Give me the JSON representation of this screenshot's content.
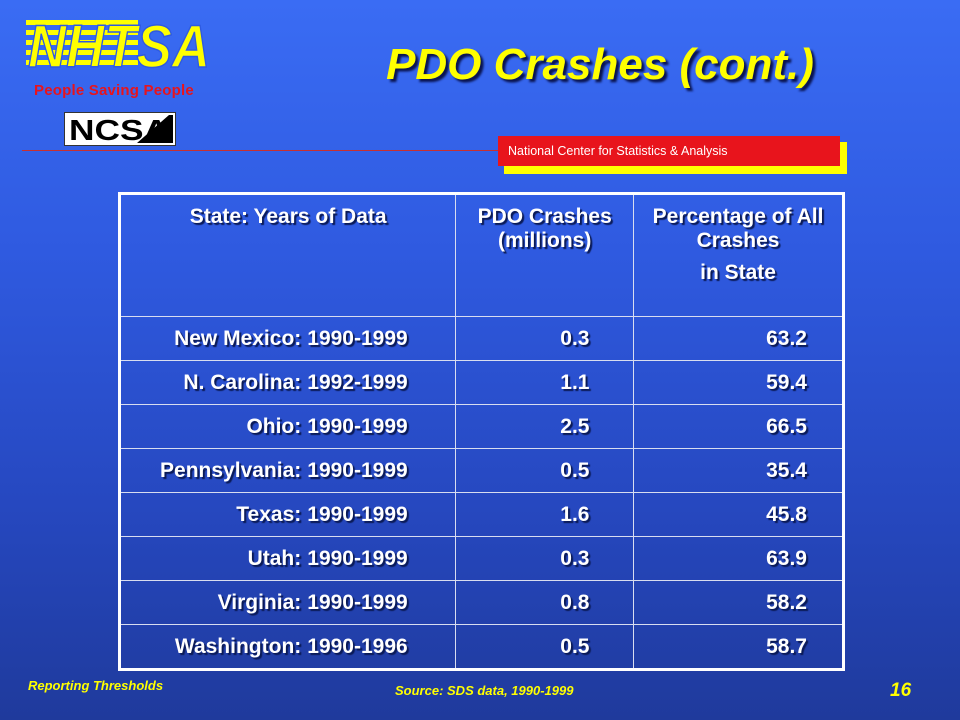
{
  "header": {
    "tagline": "People Saving People",
    "title": "PDO Crashes (cont.)",
    "center_name": "National Center for Statistics & Analysis",
    "logo_text": "NHTSA",
    "logo2_text": "NCSA"
  },
  "table": {
    "headers": {
      "state": "State: Years of Data",
      "pdo": "PDO Crashes (millions)",
      "pct": "Percentage of All Crashes",
      "pct_line2": "in State"
    },
    "rows": [
      {
        "state": "New Mexico:",
        "years": "1990-1999",
        "pdo": "0.3",
        "pct": "63.2"
      },
      {
        "state": "N. Carolina:",
        "years": "1992-1999",
        "pdo": "1.1",
        "pct": "59.4"
      },
      {
        "state": "Ohio:",
        "years": "1990-1999",
        "pdo": "2.5",
        "pct": "66.5"
      },
      {
        "state": "Pennsylvania:",
        "years": "1990-1999",
        "pdo": "0.5",
        "pct": "35.4"
      },
      {
        "state": "Texas:",
        "years": "1990-1999",
        "pdo": "1.6",
        "pct": "45.8"
      },
      {
        "state": "Utah:",
        "years": "1990-1999",
        "pdo": "0.3",
        "pct": "63.9"
      },
      {
        "state": "Virginia:",
        "years": "1990-1999",
        "pdo": "0.8",
        "pct": "58.2"
      },
      {
        "state": "Washington:",
        "years": "1990-1996",
        "pdo": "0.5",
        "pct": "58.7"
      }
    ]
  },
  "footer": {
    "left": "Reporting Thresholds",
    "source": "Source: SDS data, 1990-1999",
    "page": "16"
  },
  "colors": {
    "title": "#ffff00",
    "accent_red": "#e8141c",
    "background_top": "#3a6cf4",
    "background_bottom": "#1f3a9c"
  }
}
